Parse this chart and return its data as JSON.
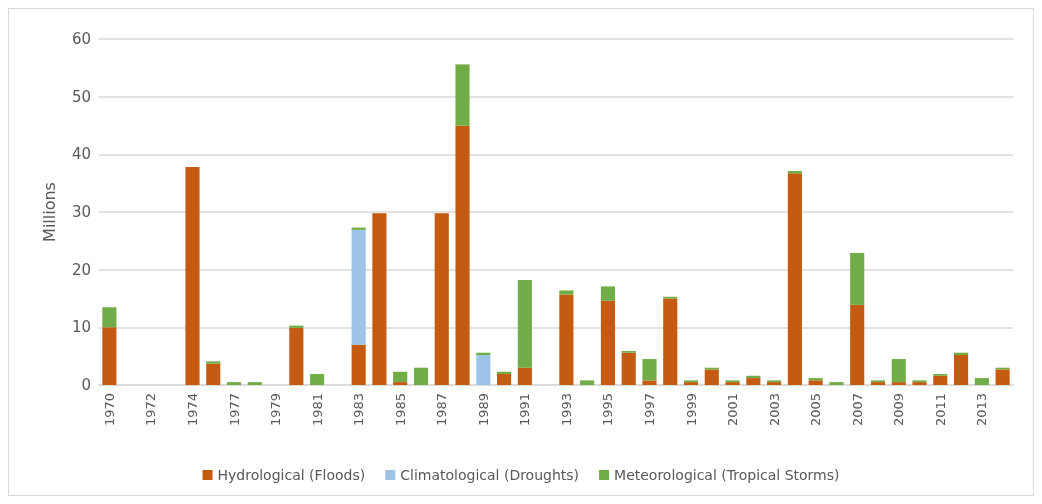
{
  "chart_data": {
    "type": "bar",
    "stacked": true,
    "ylabel": "Millions",
    "categories": [
      "1970",
      null,
      "1972",
      null,
      "1974",
      null,
      "1977",
      null,
      "1979",
      null,
      "1981",
      null,
      "1983",
      null,
      "1985",
      null,
      "1987",
      null,
      "1989",
      null,
      "1991",
      null,
      "1993",
      null,
      "1995",
      null,
      "1997",
      null,
      "1999",
      null,
      "2001",
      null,
      "2003",
      null,
      "2005",
      null,
      "2007",
      null,
      "2009",
      null,
      "2011",
      null,
      "2013",
      null
    ],
    "series": [
      {
        "name": "Hydrological (Floods)",
        "color": "#c55a11",
        "values": [
          10,
          null,
          null,
          null,
          37.8,
          3.7,
          null,
          null,
          null,
          9.9,
          null,
          null,
          7.0,
          29.8,
          0.5,
          null,
          29.8,
          45.0,
          null,
          1.9,
          3.0,
          null,
          15.7,
          null,
          14.6,
          5.6,
          0.8,
          15.0,
          0.5,
          2.7,
          0.5,
          1.2,
          0.5,
          36.7,
          0.8,
          null,
          13.9,
          0.5,
          0.5,
          0.5,
          1.6,
          5.2,
          null,
          2.7
        ]
      },
      {
        "name": "Climatological (Droughts)",
        "color": "#9dc3e6",
        "values": [
          null,
          null,
          null,
          null,
          null,
          null,
          null,
          null,
          null,
          null,
          null,
          null,
          19.9,
          null,
          null,
          null,
          null,
          null,
          5.2,
          null,
          null,
          null,
          null,
          null,
          null,
          null,
          null,
          null,
          null,
          null,
          null,
          null,
          null,
          null,
          null,
          null,
          null,
          null,
          null,
          null,
          null,
          null,
          null,
          null
        ]
      },
      {
        "name": "Meteorological (Tropical Storms)",
        "color": "#70ad47",
        "values": [
          3.5,
          null,
          null,
          null,
          null,
          0.4,
          0.5,
          0.5,
          null,
          0.4,
          1.9,
          null,
          0.4,
          null,
          1.8,
          3.0,
          null,
          10.6,
          0.4,
          0.4,
          15.2,
          null,
          0.7,
          0.8,
          2.5,
          0.3,
          3.7,
          0.3,
          0.3,
          0.3,
          0.3,
          0.4,
          0.3,
          0.4,
          0.4,
          0.5,
          9.0,
          0.3,
          4.0,
          0.3,
          0.3,
          0.4,
          1.2,
          0.3
        ]
      }
    ],
    "ylim": [
      0,
      60
    ],
    "yticks": [
      0,
      10,
      20,
      30,
      40,
      50,
      60
    ],
    "grid": "y",
    "legend": "bottom"
  }
}
